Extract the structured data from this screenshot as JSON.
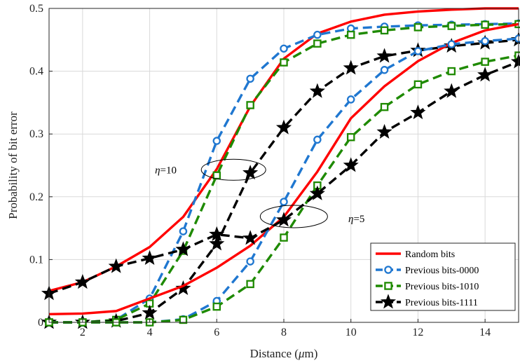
{
  "chart_data": {
    "type": "line",
    "title": "",
    "xlabel": "Distance (",
    "xlabel_mu": "μ",
    "xlabel_unit": "m)",
    "ylabel": "Probability of bit error",
    "xlim": [
      1,
      15
    ],
    "ylim": [
      0,
      0.5
    ],
    "xticks": [
      2,
      4,
      6,
      8,
      10,
      12,
      14
    ],
    "yticks": [
      0,
      0.1,
      0.2,
      0.3,
      0.4,
      0.5
    ],
    "ytick_labels": [
      "0",
      "0.1",
      "0.2",
      "0.3",
      "0.4",
      "0.5"
    ],
    "grid": true,
    "legend_position": "bottom-right",
    "legend": [
      "Random bits",
      "Previous bits-0000",
      "Previous bits-1010",
      "Previous bits-1111"
    ],
    "annotations": [
      {
        "eta": "η",
        "value": "=10",
        "x": 6.5,
        "y": 0.243
      },
      {
        "eta": "η",
        "value": "=5",
        "x": 8.3,
        "y": 0.163
      }
    ],
    "series": [
      {
        "name": "Random bits",
        "group": "η=10",
        "color": "#ff0000",
        "dash": "solid",
        "marker": "none",
        "x": [
          1,
          2,
          3,
          4,
          5,
          6,
          7,
          8,
          9,
          10,
          11,
          12,
          13,
          14,
          15
        ],
        "y": [
          0.05,
          0.064,
          0.089,
          0.12,
          0.168,
          0.244,
          0.344,
          0.42,
          0.46,
          0.479,
          0.49,
          0.495,
          0.498,
          0.5,
          0.5
        ]
      },
      {
        "name": "Previous bits-0000",
        "group": "η=10",
        "color": "#1f77d0",
        "dash": "dashed",
        "marker": "circle",
        "x": [
          1,
          2,
          3,
          4,
          5,
          6,
          7,
          8,
          9,
          10,
          11,
          12,
          13,
          14,
          15
        ],
        "y": [
          0.0,
          0.0,
          0.004,
          0.038,
          0.145,
          0.289,
          0.388,
          0.436,
          0.458,
          0.468,
          0.471,
          0.473,
          0.474,
          0.475,
          0.476
        ]
      },
      {
        "name": "Previous bits-1010",
        "group": "η=10",
        "color": "#1e8a00",
        "dash": "dashed",
        "marker": "square",
        "x": [
          1,
          2,
          3,
          4,
          5,
          6,
          7,
          8,
          9,
          10,
          11,
          12,
          13,
          14,
          15
        ],
        "y": [
          0.0,
          0.0,
          0.004,
          0.03,
          0.114,
          0.234,
          0.346,
          0.414,
          0.444,
          0.458,
          0.465,
          0.47,
          0.472,
          0.474,
          0.475
        ]
      },
      {
        "name": "Previous bits-1111",
        "group": "η=10",
        "color": "#000000",
        "dash": "dashed",
        "marker": "star",
        "x": [
          1,
          2,
          3,
          4,
          5,
          6,
          7,
          8,
          9,
          10,
          11,
          12,
          13,
          14,
          15
        ],
        "y": [
          0.0,
          0.0,
          0.002,
          0.015,
          0.054,
          0.125,
          0.238,
          0.31,
          0.368,
          0.405,
          0.424,
          0.433,
          0.44,
          0.445,
          0.45
        ]
      },
      {
        "name": "Random bits",
        "group": "η=5",
        "color": "#ff0000",
        "dash": "solid",
        "marker": "none",
        "x": [
          1,
          2,
          3,
          4,
          5,
          6,
          7,
          8,
          9,
          10,
          11,
          12,
          13,
          14,
          15
        ],
        "y": [
          0.013,
          0.014,
          0.018,
          0.038,
          0.058,
          0.087,
          0.122,
          0.168,
          0.24,
          0.325,
          0.376,
          0.416,
          0.445,
          0.465,
          0.475
        ]
      },
      {
        "name": "Previous bits-0000",
        "group": "η=5",
        "color": "#1f77d0",
        "dash": "dashed",
        "marker": "circle",
        "x": [
          1,
          2,
          3,
          4,
          5,
          6,
          7,
          8,
          9,
          10,
          11,
          12,
          13,
          14,
          15
        ],
        "y": [
          0.0,
          0.0,
          0.0,
          0.0,
          0.005,
          0.034,
          0.097,
          0.192,
          0.291,
          0.355,
          0.402,
          0.432,
          0.443,
          0.448,
          0.452
        ]
      },
      {
        "name": "Previous bits-1010",
        "group": "η=5",
        "color": "#1e8a00",
        "dash": "dashed",
        "marker": "square",
        "x": [
          1,
          2,
          3,
          4,
          5,
          6,
          7,
          8,
          9,
          10,
          11,
          12,
          13,
          14,
          15
        ],
        "y": [
          0.0,
          0.0,
          0.0,
          0.0,
          0.004,
          0.025,
          0.061,
          0.135,
          0.218,
          0.295,
          0.343,
          0.379,
          0.4,
          0.415,
          0.425
        ]
      },
      {
        "name": "Previous bits-1111",
        "group": "η=5",
        "color": "#000000",
        "dash": "dashed",
        "marker": "star",
        "x": [
          1,
          2,
          3,
          4,
          5,
          6,
          7,
          8,
          9,
          10,
          11,
          12,
          13,
          14,
          15
        ],
        "y": [
          0.046,
          0.064,
          0.089,
          0.102,
          0.116,
          0.14,
          0.134,
          0.163,
          0.205,
          0.25,
          0.303,
          0.334,
          0.368,
          0.394,
          0.415
        ]
      }
    ]
  }
}
